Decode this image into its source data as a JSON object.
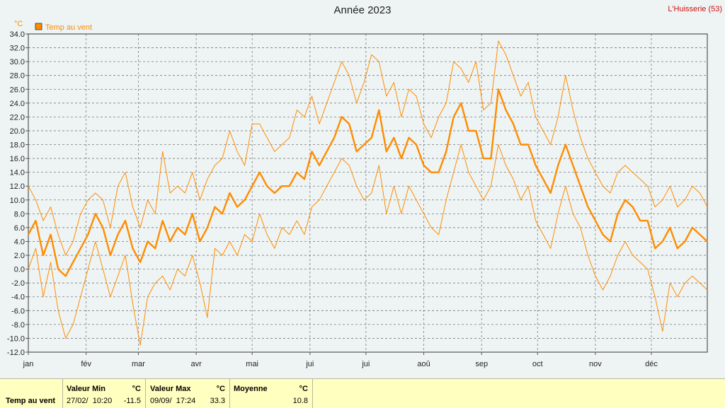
{
  "title": "Année 2023",
  "location": "L'Huisserie (53)",
  "colors": {
    "series": "#ff8c00",
    "axis": "#555555",
    "grid": "#7a7a7a",
    "background": "#eef4f4",
    "stats_bg": "#ffffc0",
    "location": "#cc1111"
  },
  "chart_data": {
    "type": "line",
    "title": "Année 2023",
    "ylabel": "°C",
    "ylim": [
      -12,
      34
    ],
    "ytick_step": 2,
    "grid": true,
    "legend": {
      "position": "top-left",
      "entries": [
        "Temp au vent"
      ]
    },
    "x": {
      "type": "date",
      "start": "2023-01-01",
      "end": "2023-12-31"
    },
    "month_labels": [
      "jan",
      "fév",
      "mar",
      "avr",
      "mai",
      "jui",
      "jui",
      "aoû",
      "sep",
      "oct",
      "nov",
      "déc"
    ],
    "series": [
      {
        "name": "Temp au vent",
        "role": "mean",
        "points": [
          [
            1,
            5
          ],
          [
            5,
            7
          ],
          [
            9,
            2
          ],
          [
            13,
            5
          ],
          [
            17,
            0
          ],
          [
            21,
            -1
          ],
          [
            25,
            1
          ],
          [
            29,
            3
          ],
          [
            33,
            5
          ],
          [
            37,
            8
          ],
          [
            41,
            6
          ],
          [
            45,
            2
          ],
          [
            49,
            5
          ],
          [
            53,
            7
          ],
          [
            57,
            3
          ],
          [
            61,
            1
          ],
          [
            65,
            4
          ],
          [
            69,
            3
          ],
          [
            73,
            7
          ],
          [
            77,
            4
          ],
          [
            81,
            6
          ],
          [
            85,
            5
          ],
          [
            89,
            8
          ],
          [
            93,
            4
          ],
          [
            97,
            6
          ],
          [
            101,
            9
          ],
          [
            105,
            8
          ],
          [
            109,
            11
          ],
          [
            113,
            9
          ],
          [
            117,
            10
          ],
          [
            121,
            12
          ],
          [
            125,
            14
          ],
          [
            129,
            12
          ],
          [
            133,
            11
          ],
          [
            137,
            12
          ],
          [
            141,
            12
          ],
          [
            145,
            14
          ],
          [
            149,
            13
          ],
          [
            153,
            17
          ],
          [
            157,
            15
          ],
          [
            161,
            17
          ],
          [
            165,
            19
          ],
          [
            169,
            22
          ],
          [
            173,
            21
          ],
          [
            177,
            17
          ],
          [
            181,
            18
          ],
          [
            185,
            19
          ],
          [
            189,
            23
          ],
          [
            193,
            17
          ],
          [
            197,
            19
          ],
          [
            201,
            16
          ],
          [
            205,
            19
          ],
          [
            209,
            18
          ],
          [
            213,
            15
          ],
          [
            217,
            14
          ],
          [
            221,
            14
          ],
          [
            225,
            17
          ],
          [
            229,
            22
          ],
          [
            233,
            24
          ],
          [
            237,
            20
          ],
          [
            241,
            20
          ],
          [
            245,
            16
          ],
          [
            249,
            16
          ],
          [
            253,
            26
          ],
          [
            257,
            23
          ],
          [
            261,
            21
          ],
          [
            265,
            18
          ],
          [
            269,
            18
          ],
          [
            273,
            15
          ],
          [
            277,
            13
          ],
          [
            281,
            11
          ],
          [
            285,
            15
          ],
          [
            289,
            18
          ],
          [
            293,
            15
          ],
          [
            297,
            12
          ],
          [
            301,
            9
          ],
          [
            305,
            7
          ],
          [
            309,
            5
          ],
          [
            313,
            4
          ],
          [
            317,
            8
          ],
          [
            321,
            10
          ],
          [
            325,
            9
          ],
          [
            329,
            7
          ],
          [
            333,
            7
          ],
          [
            337,
            3
          ],
          [
            341,
            4
          ],
          [
            345,
            6
          ],
          [
            349,
            3
          ],
          [
            353,
            4
          ],
          [
            357,
            6
          ],
          [
            361,
            5
          ],
          [
            365,
            4
          ]
        ]
      },
      {
        "name": "Max",
        "role": "max",
        "points": [
          [
            1,
            12
          ],
          [
            5,
            10
          ],
          [
            9,
            7
          ],
          [
            13,
            9
          ],
          [
            17,
            5
          ],
          [
            21,
            2
          ],
          [
            25,
            4
          ],
          [
            29,
            8
          ],
          [
            33,
            10
          ],
          [
            37,
            11
          ],
          [
            41,
            10
          ],
          [
            45,
            6
          ],
          [
            49,
            12
          ],
          [
            53,
            14
          ],
          [
            57,
            9
          ],
          [
            61,
            6
          ],
          [
            65,
            10
          ],
          [
            69,
            8
          ],
          [
            73,
            17
          ],
          [
            77,
            11
          ],
          [
            81,
            12
          ],
          [
            85,
            11
          ],
          [
            89,
            14
          ],
          [
            93,
            10
          ],
          [
            97,
            13
          ],
          [
            101,
            15
          ],
          [
            105,
            16
          ],
          [
            109,
            20
          ],
          [
            113,
            17
          ],
          [
            117,
            15
          ],
          [
            121,
            21
          ],
          [
            125,
            21
          ],
          [
            129,
            19
          ],
          [
            133,
            17
          ],
          [
            137,
            18
          ],
          [
            141,
            19
          ],
          [
            145,
            23
          ],
          [
            149,
            22
          ],
          [
            153,
            25
          ],
          [
            157,
            21
          ],
          [
            161,
            24
          ],
          [
            165,
            27
          ],
          [
            169,
            30
          ],
          [
            173,
            28
          ],
          [
            177,
            24
          ],
          [
            181,
            27
          ],
          [
            185,
            31
          ],
          [
            189,
            30
          ],
          [
            193,
            25
          ],
          [
            197,
            27
          ],
          [
            201,
            22
          ],
          [
            205,
            26
          ],
          [
            209,
            25
          ],
          [
            213,
            21
          ],
          [
            217,
            19
          ],
          [
            221,
            22
          ],
          [
            225,
            24
          ],
          [
            229,
            30
          ],
          [
            233,
            29
          ],
          [
            237,
            27
          ],
          [
            241,
            30
          ],
          [
            245,
            23
          ],
          [
            249,
            24
          ],
          [
            253,
            33
          ],
          [
            257,
            31
          ],
          [
            261,
            28
          ],
          [
            265,
            25
          ],
          [
            269,
            27
          ],
          [
            273,
            22
          ],
          [
            277,
            20
          ],
          [
            281,
            18
          ],
          [
            285,
            22
          ],
          [
            289,
            28
          ],
          [
            293,
            23
          ],
          [
            297,
            19
          ],
          [
            301,
            16
          ],
          [
            305,
            14
          ],
          [
            309,
            12
          ],
          [
            313,
            11
          ],
          [
            317,
            14
          ],
          [
            321,
            15
          ],
          [
            325,
            14
          ],
          [
            329,
            13
          ],
          [
            333,
            12
          ],
          [
            337,
            9
          ],
          [
            341,
            10
          ],
          [
            345,
            12
          ],
          [
            349,
            9
          ],
          [
            353,
            10
          ],
          [
            357,
            12
          ],
          [
            361,
            11
          ],
          [
            365,
            9
          ]
        ]
      },
      {
        "name": "Min",
        "role": "min",
        "points": [
          [
            1,
            0
          ],
          [
            5,
            3
          ],
          [
            9,
            -4
          ],
          [
            13,
            1
          ],
          [
            17,
            -6
          ],
          [
            21,
            -10
          ],
          [
            25,
            -8
          ],
          [
            29,
            -4
          ],
          [
            33,
            0
          ],
          [
            37,
            4
          ],
          [
            41,
            0
          ],
          [
            45,
            -4
          ],
          [
            49,
            -1
          ],
          [
            53,
            2
          ],
          [
            57,
            -5
          ],
          [
            61,
            -11
          ],
          [
            65,
            -4
          ],
          [
            69,
            -2
          ],
          [
            73,
            -1
          ],
          [
            77,
            -3
          ],
          [
            81,
            0
          ],
          [
            85,
            -1
          ],
          [
            89,
            2
          ],
          [
            93,
            -2
          ],
          [
            97,
            -7
          ],
          [
            101,
            3
          ],
          [
            105,
            2
          ],
          [
            109,
            4
          ],
          [
            113,
            2
          ],
          [
            117,
            5
          ],
          [
            121,
            4
          ],
          [
            125,
            8
          ],
          [
            129,
            5
          ],
          [
            133,
            3
          ],
          [
            137,
            6
          ],
          [
            141,
            5
          ],
          [
            145,
            7
          ],
          [
            149,
            5
          ],
          [
            153,
            9
          ],
          [
            157,
            10
          ],
          [
            161,
            12
          ],
          [
            165,
            14
          ],
          [
            169,
            16
          ],
          [
            173,
            15
          ],
          [
            177,
            12
          ],
          [
            181,
            10
          ],
          [
            185,
            11
          ],
          [
            189,
            15
          ],
          [
            193,
            8
          ],
          [
            197,
            12
          ],
          [
            201,
            8
          ],
          [
            205,
            12
          ],
          [
            209,
            10
          ],
          [
            213,
            8
          ],
          [
            217,
            6
          ],
          [
            221,
            5
          ],
          [
            225,
            10
          ],
          [
            229,
            14
          ],
          [
            233,
            18
          ],
          [
            237,
            14
          ],
          [
            241,
            12
          ],
          [
            245,
            10
          ],
          [
            249,
            12
          ],
          [
            253,
            18
          ],
          [
            257,
            15
          ],
          [
            261,
            13
          ],
          [
            265,
            10
          ],
          [
            269,
            12
          ],
          [
            273,
            7
          ],
          [
            277,
            5
          ],
          [
            281,
            3
          ],
          [
            285,
            8
          ],
          [
            289,
            12
          ],
          [
            293,
            8
          ],
          [
            297,
            6
          ],
          [
            301,
            2
          ],
          [
            305,
            -1
          ],
          [
            309,
            -3
          ],
          [
            313,
            -1
          ],
          [
            317,
            2
          ],
          [
            321,
            4
          ],
          [
            325,
            2
          ],
          [
            329,
            1
          ],
          [
            333,
            0
          ],
          [
            337,
            -4
          ],
          [
            341,
            -9
          ],
          [
            345,
            -2
          ],
          [
            349,
            -4
          ],
          [
            353,
            -2
          ],
          [
            357,
            -1
          ],
          [
            361,
            -2
          ],
          [
            365,
            -3
          ]
        ]
      }
    ]
  },
  "stats": {
    "row_label": "Temp au vent",
    "min": {
      "label": "Valeur Min",
      "unit": "°C",
      "date": "27/02/  10:20",
      "value": "-11.5"
    },
    "max": {
      "label": "Valeur Max",
      "unit": "°C",
      "date": "09/09/  17:24",
      "value": "33.3"
    },
    "mean": {
      "label": "Moyenne",
      "unit": "°C",
      "value": "10.8"
    }
  }
}
